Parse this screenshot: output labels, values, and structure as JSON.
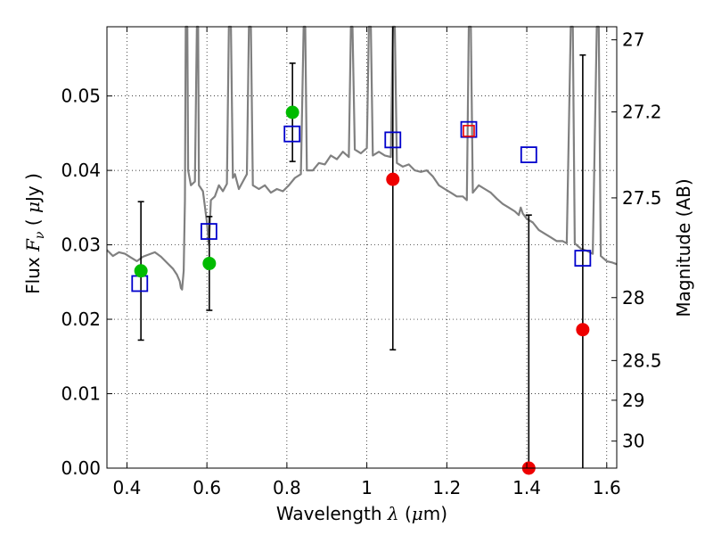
{
  "chart_data": {
    "type": "scatter",
    "xlabel": {
      "pre": "Wavelength ",
      "sym": "λ",
      "open": " (",
      "unit_sym": "μ",
      "unit_rest": "m)"
    },
    "ylabel": {
      "pre": "Flux ",
      "sym": "F",
      "sub": "ν",
      "open": " ( ",
      "unit_sym": "μ",
      "unit_rest": "Jy )"
    },
    "y2label": "Magnitude (AB)",
    "xlim": [
      0.35,
      1.625
    ],
    "ylim": [
      0.0,
      0.0593
    ],
    "grid": true,
    "x_ticks": [
      {
        "v": 0.4,
        "label": "0.4"
      },
      {
        "v": 0.6,
        "label": "0.6"
      },
      {
        "v": 0.8,
        "label": "0.8"
      },
      {
        "v": 1.0,
        "label": "1"
      },
      {
        "v": 1.2,
        "label": "1.2"
      },
      {
        "v": 1.4,
        "label": "1.4"
      },
      {
        "v": 1.6,
        "label": "1.6"
      }
    ],
    "y_ticks": [
      {
        "v": 0.0,
        "label": "0.00"
      },
      {
        "v": 0.01,
        "label": "0.01"
      },
      {
        "v": 0.02,
        "label": "0.02"
      },
      {
        "v": 0.03,
        "label": "0.03"
      },
      {
        "v": 0.04,
        "label": "0.04"
      },
      {
        "v": 0.05,
        "label": "0.05"
      }
    ],
    "y2_ticks": [
      {
        "mag": 27.0,
        "label": "27"
      },
      {
        "mag": 27.2,
        "label": "27.2"
      },
      {
        "mag": 27.5,
        "label": "27.5"
      },
      {
        "mag": 28.0,
        "label": "28"
      },
      {
        "mag": 28.5,
        "label": "28.5"
      },
      {
        "mag": 29.0,
        "label": "29"
      },
      {
        "mag": 30.0,
        "label": "30"
      }
    ],
    "colors": {
      "model": "#808080",
      "model_points": "#0000cc",
      "detections": "#00bb00",
      "upper": "#ee0000",
      "errorbar": "#000000"
    },
    "model_spectrum": [
      [
        0.35,
        0.0293
      ],
      [
        0.365,
        0.0285
      ],
      [
        0.38,
        0.029
      ],
      [
        0.395,
        0.0288
      ],
      [
        0.41,
        0.0283
      ],
      [
        0.425,
        0.0278
      ],
      [
        0.44,
        0.0284
      ],
      [
        0.455,
        0.0287
      ],
      [
        0.47,
        0.029
      ],
      [
        0.485,
        0.0284
      ],
      [
        0.5,
        0.0276
      ],
      [
        0.515,
        0.0268
      ],
      [
        0.525,
        0.026
      ],
      [
        0.532,
        0.0251
      ],
      [
        0.535,
        0.0242
      ],
      [
        0.538,
        0.024
      ],
      [
        0.542,
        0.0265
      ],
      [
        0.545,
        0.036
      ],
      [
        0.547,
        0.0593
      ],
      [
        0.551,
        0.0593
      ],
      [
        0.553,
        0.04
      ],
      [
        0.56,
        0.038
      ],
      [
        0.57,
        0.0385
      ],
      [
        0.575,
        0.0593
      ],
      [
        0.578,
        0.0593
      ],
      [
        0.58,
        0.038
      ],
      [
        0.59,
        0.0372
      ],
      [
        0.6,
        0.033
      ],
      [
        0.605,
        0.03
      ],
      [
        0.61,
        0.036
      ],
      [
        0.62,
        0.0365
      ],
      [
        0.63,
        0.038
      ],
      [
        0.64,
        0.0372
      ],
      [
        0.65,
        0.0382
      ],
      [
        0.655,
        0.0593
      ],
      [
        0.66,
        0.0593
      ],
      [
        0.665,
        0.039
      ],
      [
        0.67,
        0.0395
      ],
      [
        0.68,
        0.0375
      ],
      [
        0.69,
        0.0385
      ],
      [
        0.7,
        0.0395
      ],
      [
        0.705,
        0.0593
      ],
      [
        0.71,
        0.0593
      ],
      [
        0.715,
        0.038
      ],
      [
        0.73,
        0.0375
      ],
      [
        0.745,
        0.038
      ],
      [
        0.76,
        0.037
      ],
      [
        0.775,
        0.0375
      ],
      [
        0.79,
        0.0372
      ],
      [
        0.805,
        0.038
      ],
      [
        0.82,
        0.039
      ],
      [
        0.835,
        0.0395
      ],
      [
        0.842,
        0.0593
      ],
      [
        0.846,
        0.0593
      ],
      [
        0.85,
        0.04
      ],
      [
        0.865,
        0.04
      ],
      [
        0.88,
        0.041
      ],
      [
        0.895,
        0.0408
      ],
      [
        0.91,
        0.042
      ],
      [
        0.925,
        0.0415
      ],
      [
        0.94,
        0.0425
      ],
      [
        0.955,
        0.0418
      ],
      [
        0.96,
        0.0593
      ],
      [
        0.964,
        0.0593
      ],
      [
        0.97,
        0.0428
      ],
      [
        0.985,
        0.0423
      ],
      [
        1.0,
        0.043
      ],
      [
        1.005,
        0.0593
      ],
      [
        1.01,
        0.0593
      ],
      [
        1.015,
        0.042
      ],
      [
        1.03,
        0.0425
      ],
      [
        1.045,
        0.042
      ],
      [
        1.06,
        0.0418
      ],
      [
        1.065,
        0.0593
      ],
      [
        1.07,
        0.0593
      ],
      [
        1.075,
        0.041
      ],
      [
        1.09,
        0.0405
      ],
      [
        1.105,
        0.0408
      ],
      [
        1.12,
        0.04
      ],
      [
        1.135,
        0.0398
      ],
      [
        1.15,
        0.04
      ],
      [
        1.165,
        0.0392
      ],
      [
        1.18,
        0.038
      ],
      [
        1.195,
        0.0375
      ],
      [
        1.21,
        0.037
      ],
      [
        1.225,
        0.0365
      ],
      [
        1.24,
        0.0365
      ],
      [
        1.25,
        0.036
      ],
      [
        1.255,
        0.0593
      ],
      [
        1.26,
        0.0593
      ],
      [
        1.265,
        0.037
      ],
      [
        1.28,
        0.038
      ],
      [
        1.295,
        0.0375
      ],
      [
        1.31,
        0.037
      ],
      [
        1.325,
        0.0362
      ],
      [
        1.34,
        0.0355
      ],
      [
        1.355,
        0.035
      ],
      [
        1.37,
        0.0345
      ],
      [
        1.38,
        0.034
      ],
      [
        1.385,
        0.035
      ],
      [
        1.39,
        0.0342
      ],
      [
        1.4,
        0.0335
      ],
      [
        1.415,
        0.033
      ],
      [
        1.43,
        0.032
      ],
      [
        1.445,
        0.0315
      ],
      [
        1.46,
        0.031
      ],
      [
        1.475,
        0.0305
      ],
      [
        1.49,
        0.0305
      ],
      [
        1.5,
        0.0302
      ],
      [
        1.51,
        0.0593
      ],
      [
        1.515,
        0.0593
      ],
      [
        1.52,
        0.0302
      ],
      [
        1.535,
        0.0295
      ],
      [
        1.55,
        0.0292
      ],
      [
        1.565,
        0.0288
      ],
      [
        1.575,
        0.0593
      ],
      [
        1.58,
        0.0593
      ],
      [
        1.585,
        0.0285
      ],
      [
        1.6,
        0.0278
      ],
      [
        1.615,
        0.0276
      ],
      [
        1.625,
        0.0274
      ]
    ],
    "model_points": [
      {
        "x": 0.432,
        "y": 0.0248
      },
      {
        "x": 0.605,
        "y": 0.0318
      },
      {
        "x": 0.813,
        "y": 0.0449
      },
      {
        "x": 1.065,
        "y": 0.0441
      },
      {
        "x": 1.255,
        "y": 0.0455
      },
      {
        "x": 1.405,
        "y": 0.0421
      },
      {
        "x": 1.54,
        "y": 0.0282
      }
    ],
    "observed": [
      {
        "x": 0.435,
        "y": 0.0265,
        "err": 0.0093,
        "kind": "detection"
      },
      {
        "x": 0.606,
        "y": 0.0275,
        "err": 0.0063,
        "kind": "detection"
      },
      {
        "x": 0.814,
        "y": 0.0478,
        "err": 0.0066,
        "kind": "detection"
      },
      {
        "x": 1.065,
        "y": 0.0388,
        "err": 0.0229,
        "kind": "upper"
      },
      {
        "x": 1.255,
        "y": 0.0453,
        "err": 0.0,
        "kind": "upper"
      },
      {
        "x": 1.405,
        "y": 0.0,
        "err": 0.034,
        "kind": "upper"
      },
      {
        "x": 1.54,
        "y": 0.0186,
        "err": 0.0369,
        "kind": "upper"
      }
    ]
  }
}
